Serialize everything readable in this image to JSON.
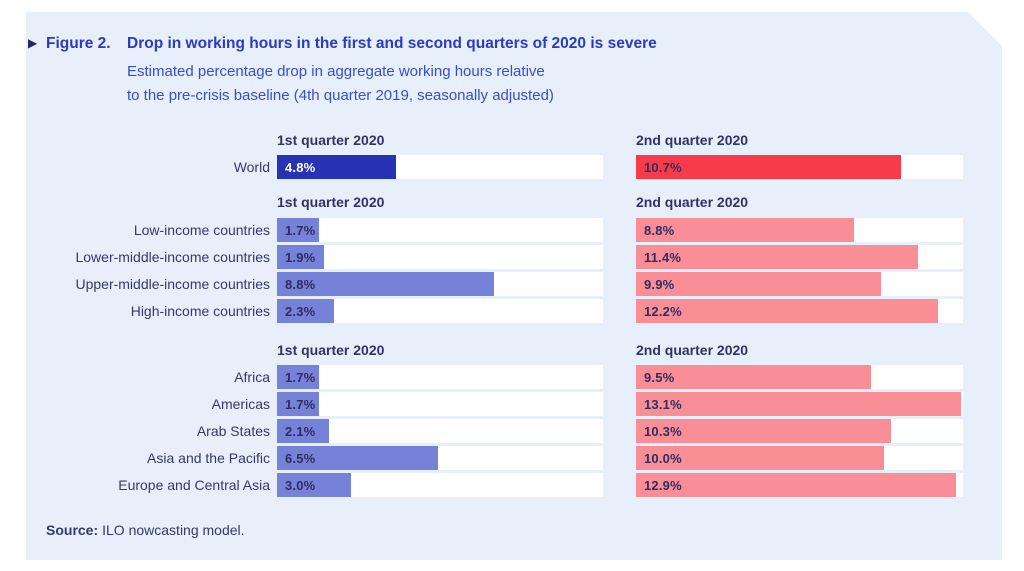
{
  "figure": {
    "marker_icon": "▶",
    "label": "Figure 2.",
    "title": "Drop in working hours in the first and second quarters of 2020 is severe",
    "subtitle_line1": "Estimated percentage drop in aggregate working hours relative",
    "subtitle_line2": "to the pre-crisis baseline (4th quarter 2019, seasonally adjusted)"
  },
  "source": {
    "label": "Source:",
    "text": "ILO nowcasting model."
  },
  "chart_data": {
    "type": "bar",
    "orientation": "horizontal",
    "value_unit": "%",
    "xlim": [
      0,
      13.2
    ],
    "column_headers": [
      "1st quarter 2020",
      "2nd quarter 2020"
    ],
    "groups": [
      {
        "name": "world",
        "rows": [
          {
            "label": "World",
            "values": [
              4.8,
              10.7
            ]
          }
        ]
      },
      {
        "name": "income-groups",
        "rows": [
          {
            "label": "Low-income countries",
            "values": [
              1.7,
              8.8
            ]
          },
          {
            "label": "Lower-middle-income countries",
            "values": [
              1.9,
              11.4
            ]
          },
          {
            "label": "Upper-middle-income countries",
            "values": [
              8.8,
              9.9
            ]
          },
          {
            "label": "High-income countries",
            "values": [
              2.3,
              12.2
            ]
          }
        ]
      },
      {
        "name": "regions",
        "rows": [
          {
            "label": "Africa",
            "values": [
              1.7,
              9.5
            ]
          },
          {
            "label": "Americas",
            "values": [
              1.7,
              13.1
            ]
          },
          {
            "label": "Arab States",
            "values": [
              2.1,
              10.3
            ]
          },
          {
            "label": "Asia and the Pacific",
            "values": [
              6.5,
              10.0
            ]
          },
          {
            "label": "Europe and Central Asia",
            "values": [
              3.0,
              12.9
            ]
          }
        ]
      }
    ],
    "colors": {
      "panel_background": "#e6effa",
      "world_q1_bar": "#2733b3",
      "world_q2_bar": "#f73b4b",
      "group_q1_bar": "#7681d8",
      "group_q2_bar": "#f98e96",
      "track": "#ffffff",
      "value_text": "#2f2e62",
      "world_q1_value_text": "#ffffff",
      "label_text": "#333a6e",
      "title_text": "#2c3ac2"
    }
  }
}
